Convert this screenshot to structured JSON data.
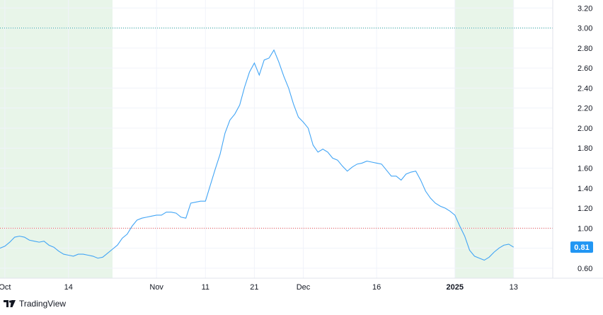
{
  "brand": {
    "name": "TradingView",
    "logo_icon": "tradingview-logo-icon"
  },
  "colors": {
    "line": "#2962ff",
    "line_light": "#42a5f5",
    "shade": "#e8f5e9",
    "ref_top": "#26a69a",
    "ref_bottom": "#ef5350",
    "grid": "#f0f3fa",
    "axis_text": "#131722",
    "badge_bg": "#2196f3",
    "badge_text": "#ffffff"
  },
  "chart_data": {
    "type": "line",
    "x_start": "2024-09-27",
    "y_axis_ticks": [
      "0.60",
      "0.80",
      "1.00",
      "1.20",
      "1.40",
      "1.60",
      "1.80",
      "2.00",
      "2.20",
      "2.40",
      "2.60",
      "2.80",
      "3.00",
      "3.20"
    ],
    "x_axis_ticks": [
      {
        "label": "Oct",
        "date": "2024-10-01"
      },
      {
        "label": "14",
        "date": "2024-10-14"
      },
      {
        "label": "Nov",
        "date": "2024-11-01"
      },
      {
        "label": "11",
        "date": "2024-11-11"
      },
      {
        "label": "21",
        "date": "2024-11-21"
      },
      {
        "label": "Dec",
        "date": "2024-12-01"
      },
      {
        "label": "16",
        "date": "2024-12-16"
      },
      {
        "label": "2025",
        "date": "2025-01-01",
        "bold": true
      },
      {
        "label": "13",
        "date": "2025-01-13"
      }
    ],
    "reference_lines": [
      {
        "value": 3.0,
        "style": "dotted",
        "color_key": "ref_top"
      },
      {
        "value": 1.0,
        "style": "dotted",
        "color_key": "ref_bottom"
      }
    ],
    "shaded_ranges": [
      {
        "start": "2024-09-27",
        "end": "2024-10-23"
      },
      {
        "start": "2025-01-01",
        "end": "2025-01-13"
      }
    ],
    "last_value": "0.81",
    "ylim": [
      0.5,
      3.28
    ],
    "xlim": [
      "2024-09-30",
      "2025-01-21"
    ],
    "grid": true,
    "series": [
      {
        "x": [
          "2024-09-30",
          "2024-10-01",
          "2024-10-02",
          "2024-10-03",
          "2024-10-04",
          "2024-10-05",
          "2024-10-06",
          "2024-10-07",
          "2024-10-08",
          "2024-10-09",
          "2024-10-10",
          "2024-10-11",
          "2024-10-12",
          "2024-10-13",
          "2024-10-14",
          "2024-10-15",
          "2024-10-16",
          "2024-10-17",
          "2024-10-18",
          "2024-10-19",
          "2024-10-20",
          "2024-10-21",
          "2024-10-22",
          "2024-10-23",
          "2024-10-24",
          "2024-10-25",
          "2024-10-26",
          "2024-10-27",
          "2024-10-28",
          "2024-10-29",
          "2024-10-30",
          "2024-10-31",
          "2024-11-01",
          "2024-11-02",
          "2024-11-03",
          "2024-11-04",
          "2024-11-05",
          "2024-11-06",
          "2024-11-07",
          "2024-11-08",
          "2024-11-09",
          "2024-11-10",
          "2024-11-11",
          "2024-11-12",
          "2024-11-13",
          "2024-11-14",
          "2024-11-15",
          "2024-11-16",
          "2024-11-17",
          "2024-11-18",
          "2024-11-19",
          "2024-11-20",
          "2024-11-21",
          "2024-11-22",
          "2024-11-23",
          "2024-11-24",
          "2024-11-25",
          "2024-11-26",
          "2024-11-27",
          "2024-11-28",
          "2024-11-29",
          "2024-11-30",
          "2024-12-01",
          "2024-12-02",
          "2024-12-03",
          "2024-12-04",
          "2024-12-05",
          "2024-12-06",
          "2024-12-07",
          "2024-12-08",
          "2024-12-09",
          "2024-12-10",
          "2024-12-11",
          "2024-12-12",
          "2024-12-13",
          "2024-12-14",
          "2024-12-15",
          "2024-12-16",
          "2024-12-17",
          "2024-12-18",
          "2024-12-19",
          "2024-12-20",
          "2024-12-21",
          "2024-12-22",
          "2024-12-23",
          "2024-12-24",
          "2024-12-25",
          "2024-12-26",
          "2024-12-27",
          "2024-12-28",
          "2024-12-29",
          "2024-12-30",
          "2024-12-31",
          "2025-01-01",
          "2025-01-02",
          "2025-01-03",
          "2025-01-04",
          "2025-01-05",
          "2025-01-06",
          "2025-01-07",
          "2025-01-08",
          "2025-01-09",
          "2025-01-10",
          "2025-01-11",
          "2025-01-12",
          "2025-01-13"
        ],
        "values": [
          0.8,
          0.82,
          0.86,
          0.91,
          0.92,
          0.91,
          0.88,
          0.87,
          0.86,
          0.87,
          0.83,
          0.81,
          0.77,
          0.74,
          0.73,
          0.72,
          0.74,
          0.74,
          0.73,
          0.72,
          0.7,
          0.71,
          0.75,
          0.79,
          0.83,
          0.9,
          0.94,
          1.02,
          1.08,
          1.1,
          1.11,
          1.12,
          1.13,
          1.13,
          1.16,
          1.16,
          1.15,
          1.11,
          1.1,
          1.25,
          1.26,
          1.27,
          1.27,
          1.43,
          1.59,
          1.74,
          1.95,
          2.08,
          2.14,
          2.23,
          2.41,
          2.56,
          2.65,
          2.53,
          2.68,
          2.7,
          2.78,
          2.66,
          2.52,
          2.4,
          2.24,
          2.11,
          2.06,
          2.0,
          1.83,
          1.76,
          1.79,
          1.76,
          1.7,
          1.68,
          1.62,
          1.57,
          1.61,
          1.64,
          1.65,
          1.67,
          1.66,
          1.65,
          1.64,
          1.58,
          1.52,
          1.52,
          1.48,
          1.54,
          1.56,
          1.57,
          1.48,
          1.37,
          1.3,
          1.25,
          1.22,
          1.2,
          1.17,
          1.13,
          1.02,
          0.92,
          0.78,
          0.72,
          0.7,
          0.68,
          0.71,
          0.76,
          0.8,
          0.83,
          0.84,
          0.81
        ]
      }
    ]
  }
}
